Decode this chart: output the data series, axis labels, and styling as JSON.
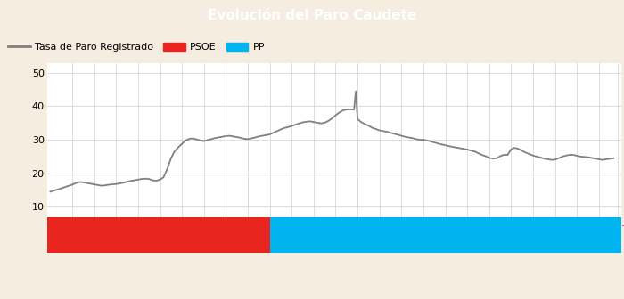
{
  "title": "Evolución del Paro Caudete",
  "title_bg": "#4472c4",
  "title_color": "#ffffff",
  "title_fontsize": 11,
  "ylim": [
    7,
    53
  ],
  "yticks": [
    10,
    20,
    30,
    40,
    50
  ],
  "line_color": "#808080",
  "line_width": 1.3,
  "psoe_color": "#e8251f",
  "pp_color": "#00b4f0",
  "psoe_start": 2006.42,
  "psoe_end": 2011.5,
  "pp_start": 2011.5,
  "pp_end": 2019.5,
  "xmin": 2006.42,
  "xmax": 2019.5,
  "legend_line_label": "Tasa de Paro Registrado",
  "legend_psoe_label": "PSOE",
  "legend_pp_label": "PP",
  "background_color": "#ffffff",
  "outer_bg": "#f5ede0",
  "grid_color": "#d0d0d0",
  "data": {
    "dates": [
      2006.5,
      2006.6,
      2006.75,
      2006.9,
      2007.0,
      2007.08,
      2007.17,
      2007.25,
      2007.33,
      2007.42,
      2007.5,
      2007.58,
      2007.67,
      2007.75,
      2007.83,
      2007.92,
      2008.0,
      2008.08,
      2008.17,
      2008.25,
      2008.33,
      2008.42,
      2008.5,
      2008.58,
      2008.67,
      2008.75,
      2008.83,
      2008.92,
      2009.0,
      2009.08,
      2009.17,
      2009.25,
      2009.33,
      2009.42,
      2009.5,
      2009.58,
      2009.67,
      2009.75,
      2009.83,
      2009.92,
      2010.0,
      2010.08,
      2010.17,
      2010.25,
      2010.33,
      2010.42,
      2010.5,
      2010.58,
      2010.67,
      2010.75,
      2010.83,
      2010.92,
      2011.0,
      2011.08,
      2011.17,
      2011.25,
      2011.33,
      2011.42,
      2011.5,
      2011.58,
      2011.67,
      2011.75,
      2011.83,
      2011.92,
      2012.0,
      2012.08,
      2012.17,
      2012.25,
      2012.33,
      2012.42,
      2012.5,
      2012.58,
      2012.67,
      2012.75,
      2012.83,
      2012.92,
      2013.0,
      2013.08,
      2013.17,
      2013.25,
      2013.33,
      2013.42,
      2013.46,
      2013.5,
      2013.58,
      2013.67,
      2013.75,
      2013.83,
      2013.92,
      2014.0,
      2014.08,
      2014.17,
      2014.25,
      2014.33,
      2014.42,
      2014.5,
      2014.58,
      2014.67,
      2014.75,
      2014.83,
      2014.92,
      2015.0,
      2015.08,
      2015.17,
      2015.25,
      2015.33,
      2015.42,
      2015.5,
      2015.58,
      2015.67,
      2015.75,
      2015.83,
      2015.92,
      2016.0,
      2016.08,
      2016.17,
      2016.25,
      2016.33,
      2016.42,
      2016.5,
      2016.58,
      2016.67,
      2016.75,
      2016.83,
      2016.92,
      2017.0,
      2017.08,
      2017.17,
      2017.25,
      2017.33,
      2017.42,
      2017.5,
      2017.58,
      2017.67,
      2017.75,
      2017.83,
      2017.92,
      2018.0,
      2018.08,
      2018.17,
      2018.25,
      2018.33,
      2018.42,
      2018.5,
      2018.58,
      2018.67,
      2018.75,
      2018.83,
      2018.92,
      2019.0,
      2019.08,
      2019.17,
      2019.33
    ],
    "values": [
      14.5,
      14.9,
      15.5,
      16.2,
      16.6,
      17.1,
      17.4,
      17.3,
      17.1,
      16.9,
      16.7,
      16.5,
      16.3,
      16.4,
      16.6,
      16.7,
      16.8,
      17.0,
      17.2,
      17.5,
      17.7,
      17.9,
      18.1,
      18.3,
      18.4,
      18.3,
      17.9,
      17.8,
      18.1,
      18.8,
      21.5,
      24.5,
      26.5,
      27.8,
      28.8,
      29.8,
      30.3,
      30.4,
      30.1,
      29.8,
      29.6,
      29.9,
      30.2,
      30.5,
      30.7,
      30.9,
      31.1,
      31.2,
      31.0,
      30.8,
      30.6,
      30.3,
      30.2,
      30.4,
      30.7,
      31.0,
      31.2,
      31.4,
      31.6,
      32.1,
      32.6,
      33.1,
      33.5,
      33.8,
      34.1,
      34.5,
      34.9,
      35.2,
      35.4,
      35.5,
      35.3,
      35.1,
      34.9,
      35.1,
      35.6,
      36.4,
      37.3,
      38.1,
      38.8,
      39.0,
      39.1,
      39.0,
      44.5,
      36.2,
      35.3,
      34.7,
      34.2,
      33.6,
      33.2,
      32.8,
      32.6,
      32.4,
      32.1,
      31.8,
      31.5,
      31.2,
      30.9,
      30.7,
      30.5,
      30.2,
      30.0,
      30.0,
      29.8,
      29.5,
      29.2,
      28.9,
      28.6,
      28.4,
      28.1,
      27.9,
      27.7,
      27.5,
      27.3,
      27.1,
      26.8,
      26.5,
      26.0,
      25.5,
      25.1,
      24.6,
      24.4,
      24.5,
      25.1,
      25.5,
      25.5,
      27.2,
      27.6,
      27.3,
      26.7,
      26.2,
      25.7,
      25.3,
      25.0,
      24.7,
      24.4,
      24.2,
      24.0,
      24.1,
      24.5,
      25.0,
      25.3,
      25.5,
      25.5,
      25.2,
      25.0,
      24.9,
      24.8,
      24.6,
      24.4,
      24.2,
      24.0,
      24.2,
      24.5
    ]
  }
}
